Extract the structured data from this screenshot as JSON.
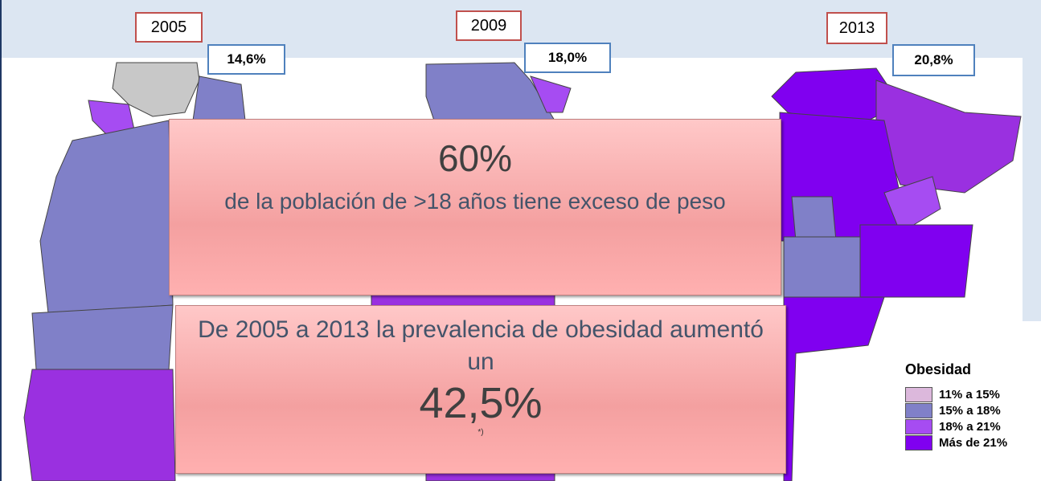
{
  "maps": [
    {
      "year": "2005",
      "value": "14,6%"
    },
    {
      "year": "2009",
      "value": "18,0%"
    },
    {
      "year": "2013",
      "value": "20,8%"
    }
  ],
  "callouts": [
    {
      "headline": "60%",
      "text": "de la población de >18 años tiene exceso de peso"
    },
    {
      "text": "De 2005 a 2013 la prevalencia de obesidad aumentó un",
      "headline": "42,5%",
      "footnote": "*)"
    }
  ],
  "legend": {
    "title": "Obesidad",
    "items": [
      {
        "label": "11% a 15%",
        "color": "#dcb8dc"
      },
      {
        "label": "15% a 18%",
        "color": "#8080c8"
      },
      {
        "label": "18% a 21%",
        "color": "#a64cf2"
      },
      {
        "label": "Más de 21%",
        "color": "#8000f0"
      }
    ]
  }
}
